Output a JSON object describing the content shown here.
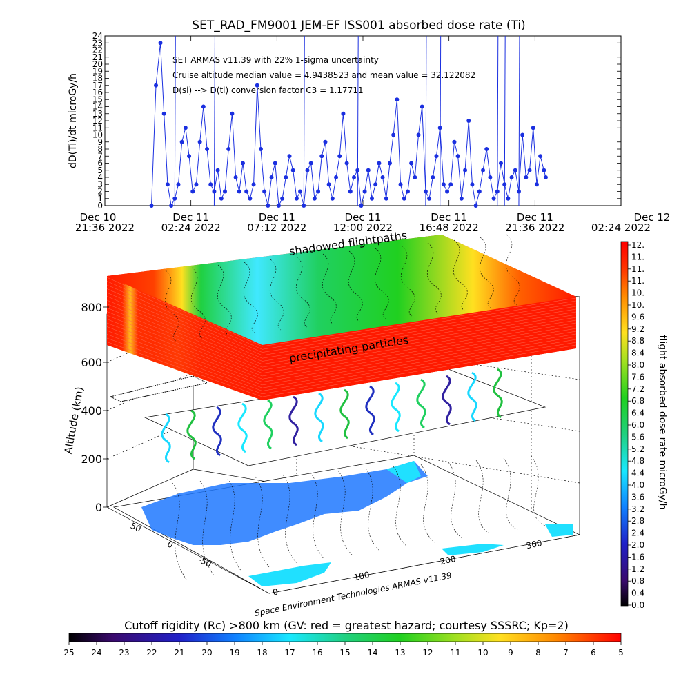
{
  "chart_data": [
    {
      "type": "scatter",
      "title": "SET_RAD_FM9001  JEM-EF ISS001 absorbed dose rate (Ti)",
      "ylabel": "dD(Ti)/dt microGy/h",
      "ylim": [
        0,
        24
      ],
      "y_ticks": [
        "0",
        "1",
        "2",
        "3",
        "4",
        "5",
        "6",
        "7",
        "8",
        "9",
        "10",
        "11",
        "12",
        "13",
        "14",
        "15",
        "16",
        "17",
        "18",
        "19",
        "20",
        "21",
        "22",
        "23",
        "24"
      ],
      "x_ticks": [
        {
          "line1": "Dec 10",
          "line2": "21:36 2022"
        },
        {
          "line1": "Dec 11",
          "line2": "02:24 2022"
        },
        {
          "line1": "Dec 11",
          "line2": "07:12 2022"
        },
        {
          "line1": "Dec 11",
          "line2": "12:00 2022"
        },
        {
          "line1": "Dec 11",
          "line2": "16:48 2022"
        },
        {
          "line1": "Dec 11",
          "line2": "21:36 2022"
        },
        {
          "line1": "Dec 12",
          "line2": "02:24 2022"
        }
      ],
      "xlim_hours": [
        0,
        28.8
      ],
      "annotations": [
        "SET ARMAS v11.39 with 22% 1-sigma uncertainty",
        "Cruise altitude median value = 4.9438523 and mean value = 32.122082",
        "D(si) --> D(ti) conversion factor C3 = 1.17711"
      ],
      "series": [
        {
          "color": "#1a2fe0",
          "x_hours": [
            2.6,
            2.85,
            3.1,
            3.3,
            3.5,
            3.7,
            3.9,
            4.1,
            4.3,
            4.5,
            4.7,
            4.9,
            5.1,
            5.3,
            5.5,
            5.7,
            5.9,
            6.1,
            6.3,
            6.5,
            6.7,
            6.9,
            7.1,
            7.3,
            7.5,
            7.7,
            7.9,
            8.1,
            8.3,
            8.5,
            8.7,
            8.9,
            9.1,
            9.3,
            9.5,
            9.7,
            9.9,
            10.1,
            10.3,
            10.5,
            10.7,
            10.9,
            11.1,
            11.3,
            11.5,
            11.7,
            11.9,
            12.1,
            12.3,
            12.5,
            12.7,
            12.9,
            13.1,
            13.3,
            13.5,
            13.7,
            13.9,
            14.1,
            14.3,
            14.5,
            14.7,
            14.9,
            15.1,
            15.3,
            15.5,
            15.7,
            15.9,
            16.1,
            16.3,
            16.5,
            16.7,
            16.9,
            17.1,
            17.3,
            17.5,
            17.7,
            17.9,
            18.1,
            18.3,
            18.5,
            18.7,
            18.9,
            19.1,
            19.3,
            19.5,
            19.7,
            19.9,
            20.1,
            20.3,
            20.5,
            20.7,
            20.9,
            21.1,
            21.3,
            21.5,
            21.7,
            21.9,
            22.1,
            22.3,
            22.5,
            22.7,
            22.9,
            23.1,
            23.3,
            23.5,
            23.7,
            23.9,
            24.1,
            24.3,
            24.5,
            24.6
          ],
          "y": [
            0,
            17,
            23,
            13,
            3,
            0,
            1,
            3,
            9,
            11,
            7,
            2,
            3,
            9,
            14,
            8,
            3,
            2,
            5,
            1,
            2,
            8,
            13,
            4,
            2,
            6,
            2,
            1,
            3,
            17,
            8,
            2,
            0,
            4,
            6,
            0,
            1,
            4,
            7,
            5,
            1,
            2,
            0,
            5,
            6,
            1,
            2,
            7,
            9,
            3,
            1,
            4,
            7,
            13,
            6,
            2,
            4,
            5,
            0,
            2,
            5,
            1,
            3,
            6,
            4,
            1,
            6,
            10,
            15,
            3,
            1,
            2,
            6,
            4,
            10,
            14,
            2,
            1,
            4,
            7,
            11,
            3,
            2,
            3,
            9,
            7,
            1,
            5,
            12,
            3,
            0,
            2,
            5,
            8,
            4,
            1,
            2,
            6,
            3,
            1,
            4,
            5,
            2,
            10,
            4,
            5,
            11,
            3,
            7,
            5,
            4
          ]
        }
      ]
    },
    {
      "type": "heatmap",
      "description_labels": [
        "shadowed flightpaths",
        "precipitating particles"
      ],
      "zlabel": "Altitude (km)",
      "z_ticks": [
        "0",
        "200",
        "400",
        "600",
        "800"
      ],
      "lat_ticks": [
        "50",
        "0",
        "-50"
      ],
      "lon_ticks": [
        "0",
        "100",
        "200",
        "300"
      ],
      "credit": "Space Environment Technologies ARMAS v11.39"
    },
    {
      "type": "colorbar",
      "orientation": "vertical",
      "label": "flight absorbed dose rate microGy/h",
      "ticks": [
        "12.",
        "11.",
        "11.",
        "11.",
        "10.",
        "10.",
        "9.6",
        "9.2",
        "8.8",
        "8.4",
        "8.0",
        "7.6",
        "7.2",
        "6.8",
        "6.4",
        "6.0",
        "5.6",
        "5.2",
        "4.8",
        "4.4",
        "4.0",
        "3.6",
        "3.2",
        "2.8",
        "2.4",
        "2.0",
        "1.6",
        "1.2",
        "0.8",
        "0.4",
        "0.0"
      ],
      "range": [
        0,
        12
      ]
    },
    {
      "type": "colorbar",
      "orientation": "horizontal",
      "label": "Cutoff rigidity (Rc) >800 km (GV: red = greatest hazard; courtesy SSSRC; Kp=2)",
      "ticks": [
        "25",
        "24",
        "23",
        "22",
        "21",
        "20",
        "19",
        "18",
        "17",
        "16",
        "15",
        "14",
        "13",
        "12",
        "11",
        "10",
        "9",
        "8",
        "7",
        "6",
        "5"
      ],
      "range": [
        25,
        5
      ]
    }
  ],
  "colors": {
    "series": "#1a2fe0",
    "cutoff_sheet_red": "#ff1a00",
    "ground_track": "#1a2fe0"
  }
}
